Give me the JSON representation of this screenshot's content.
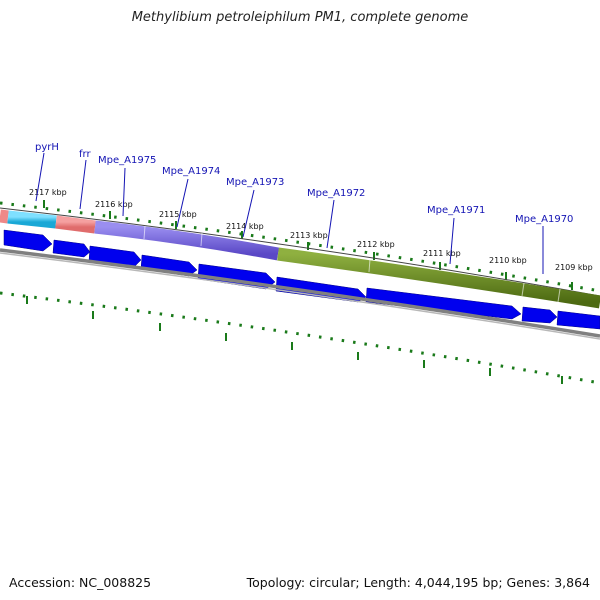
{
  "title": "Methylibium petroleiphilum PM1, complete genome",
  "footer": {
    "accession": "Accession: NC_008825",
    "summary": "Topology: circular; Length: 4,044,195 bp; Genes: 3,864"
  },
  "colors": {
    "cds_arrow": "#0000ee",
    "backbone": "#808080",
    "tick": "#1a7a1a",
    "label": "#1414b4"
  },
  "scale": {
    "unit": "kbp",
    "labels": [
      "2117 kbp",
      "2116 kbp",
      "2115 kbp",
      "2114 kbp",
      "2113 kbp",
      "2112 kbp",
      "2111 kbp",
      "2110 kbp",
      "2109 kbp"
    ]
  },
  "genes": [
    {
      "name": "pyrH",
      "color": "#33bbee"
    },
    {
      "name": "frr",
      "color": "#ee7777"
    },
    {
      "name": "Mpe_A1975",
      "color": "#7766dd"
    },
    {
      "name": "Mpe_A1974",
      "color": "#7766dd"
    },
    {
      "name": "Mpe_A1973",
      "color": "#7766dd"
    },
    {
      "name": "Mpe_A1972",
      "color": "#6b8e23"
    },
    {
      "name": "Mpe_A1971",
      "color": "#6b8e23"
    },
    {
      "name": "Mpe_A1970",
      "color": "#6b8e23"
    }
  ]
}
